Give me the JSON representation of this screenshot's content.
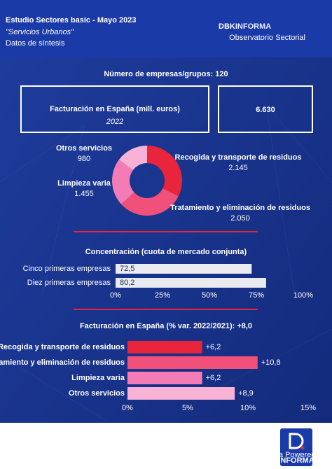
{
  "header": {
    "title": "Estudio Sectores basic - Mayo 2023",
    "subtitle": "\"Servicios Urbanos\"",
    "note": "Datos de síntesis",
    "logo_main": "DBK",
    "logo_accent": "INFORMA",
    "logo_tagline": "Observatorio Sectorial"
  },
  "summary": {
    "companies": "Número de empresas/grupos: 120",
    "revenue_label": "Facturación en España (mill. euros)",
    "revenue_year": "2022",
    "revenue_value": "6.630"
  },
  "footer": {
    "badge": "Data Powered by",
    "badge_brand": "INFORMA"
  },
  "chart_data": [
    {
      "type": "donut",
      "categories": [
        "Recogida y transporte de residuos",
        "Tratamiento y eliminación de residuos",
        "Limpieza varia",
        "Otros servicios"
      ],
      "values": [
        2145,
        2050,
        1455,
        980
      ],
      "value_labels": [
        "2.145",
        "2.050",
        "1.455",
        "980"
      ],
      "colors": [
        "#e8253a",
        "#f0507a",
        "#f47cb6",
        "#f8b2d6"
      ]
    },
    {
      "type": "bar",
      "orientation": "horizontal",
      "title": "Concentración (cuota de mercado conjunta)",
      "categories": [
        "Cinco primeras empresas",
        "Diez primeras empresas"
      ],
      "values": [
        72.5,
        80.2
      ],
      "value_labels": [
        "72,5",
        "80,2"
      ],
      "color": "#e9ebf0",
      "xlim": [
        0,
        100
      ],
      "xticks": [
        {
          "value": 0,
          "label": "0%"
        },
        {
          "value": 25,
          "label": "25%"
        },
        {
          "value": 50,
          "label": "50%"
        },
        {
          "value": 75,
          "label": "75%"
        },
        {
          "value": 100,
          "label": "100%"
        }
      ]
    },
    {
      "type": "bar",
      "orientation": "horizontal",
      "title": "Facturación en España (% var. 2022/2021): +8,0",
      "categories": [
        "Recogida y transporte de residuos",
        "Tratamiento y eliminación de residuos",
        "Limpieza varia",
        "Otros servicios"
      ],
      "values": [
        6.2,
        10.8,
        6.2,
        8.9
      ],
      "value_labels": [
        "+6,2",
        "+10,8",
        "+6,2",
        "+8,9"
      ],
      "colors": [
        "#e8253a",
        "#f0507a",
        "#f47cb6",
        "#f8b2d6"
      ],
      "xlim": [
        0,
        15
      ],
      "xticks": [
        {
          "value": 0,
          "label": "0%"
        },
        {
          "value": 5,
          "label": "5%"
        },
        {
          "value": 10,
          "label": "10%"
        },
        {
          "value": 15,
          "label": "15%"
        }
      ]
    }
  ]
}
